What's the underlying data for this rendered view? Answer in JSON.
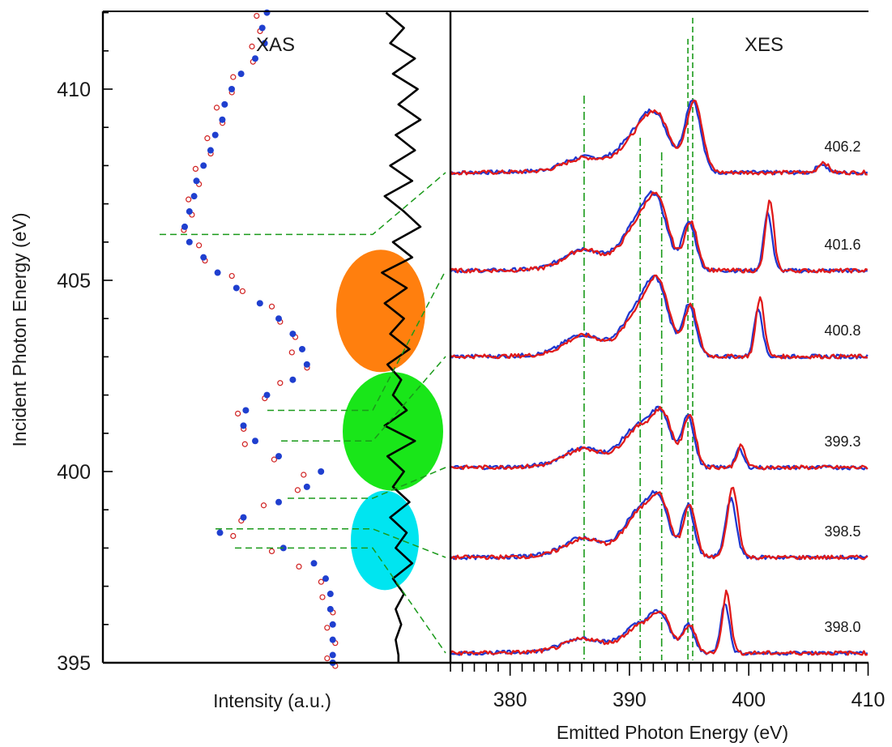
{
  "chart_data": [
    {
      "panel": "left",
      "type": "scatter",
      "label": "XAS",
      "xlabel": "Intensity (a.u.)",
      "ylabel": "Incident Photon Energy (eV)",
      "ylim": [
        395,
        412
      ],
      "yticks": [
        395,
        400,
        405,
        410
      ],
      "series": [
        {
          "name": "",
          "marker": "filled-circle",
          "color": "#1f3fcf",
          "y": [
            412.0,
            411.6,
            411.2,
            410.8,
            410.4,
            410.0,
            409.6,
            409.2,
            408.8,
            408.4,
            408.0,
            407.6,
            407.2,
            406.8,
            406.4,
            406.0,
            405.6,
            405.2,
            404.8,
            404.4,
            404.0,
            403.6,
            403.2,
            402.8,
            402.4,
            402.0,
            401.6,
            401.2,
            400.8,
            400.4,
            400.0,
            399.6,
            399.2,
            398.8,
            398.4,
            398.0,
            397.6,
            397.2,
            396.8,
            396.4,
            396.0,
            395.6,
            395.2,
            395.0
          ],
          "x": [
            0.55,
            0.53,
            0.54,
            0.5,
            0.44,
            0.4,
            0.37,
            0.36,
            0.33,
            0.31,
            0.28,
            0.25,
            0.24,
            0.22,
            0.2,
            0.22,
            0.28,
            0.34,
            0.42,
            0.52,
            0.6,
            0.66,
            0.7,
            0.72,
            0.66,
            0.55,
            0.46,
            0.45,
            0.5,
            0.6,
            0.78,
            0.72,
            0.6,
            0.45,
            0.35,
            0.62,
            0.75,
            0.8,
            0.82,
            0.82,
            0.83,
            0.83,
            0.83,
            0.83
          ]
        },
        {
          "name": "",
          "marker": "open-circle",
          "color": "#d02020",
          "y": [
            412.0,
            411.6,
            411.2,
            410.8,
            410.4,
            410.0,
            409.6,
            409.2,
            408.8,
            408.4,
            408.0,
            407.6,
            407.2,
            406.8,
            406.4,
            406.0,
            405.6,
            405.2,
            404.8,
            404.4,
            404.0,
            403.6,
            403.2,
            402.8,
            402.4,
            402.0,
            401.6,
            401.2,
            400.8,
            400.4,
            400.0,
            399.6,
            399.2,
            398.8,
            398.4,
            398.0,
            397.6,
            397.2,
            396.8,
            396.4,
            396.0,
            395.6,
            395.2,
            395.0
          ],
          "x": [
            0.52,
            0.5,
            0.5,
            0.47,
            0.42,
            0.38,
            0.35,
            0.34,
            0.31,
            0.29,
            0.26,
            0.24,
            0.23,
            0.21,
            0.21,
            0.24,
            0.3,
            0.38,
            0.46,
            0.55,
            0.62,
            0.65,
            0.67,
            0.7,
            0.62,
            0.52,
            0.44,
            0.43,
            0.47,
            0.56,
            0.72,
            0.66,
            0.55,
            0.42,
            0.42,
            0.55,
            0.7,
            0.76,
            0.8,
            0.81,
            0.82,
            0.82,
            0.82,
            0.82
          ]
        },
        {
          "name": "",
          "marker": "line",
          "color": "#000000",
          "y": [
            412.0,
            411.6,
            411.2,
            410.8,
            410.4,
            410.0,
            409.6,
            409.2,
            408.8,
            408.4,
            408.0,
            407.6,
            407.2,
            406.8,
            406.4,
            406.0,
            405.6,
            405.2,
            404.8,
            404.4,
            404.0,
            403.6,
            403.2,
            402.8,
            402.4,
            402.0,
            401.6,
            401.2,
            400.8,
            400.4,
            400.0,
            399.6,
            399.2,
            398.8,
            398.4,
            398.0,
            397.6,
            397.2,
            396.8,
            396.4,
            396.0,
            395.6,
            395.2,
            395.0
          ],
          "x": [
            0.45,
            0.58,
            0.48,
            0.66,
            0.5,
            0.68,
            0.54,
            0.7,
            0.52,
            0.66,
            0.48,
            0.64,
            0.44,
            0.58,
            0.7,
            0.5,
            0.64,
            0.42,
            0.6,
            0.44,
            0.58,
            0.48,
            0.62,
            0.46,
            0.56,
            0.5,
            0.6,
            0.44,
            0.66,
            0.46,
            0.58,
            0.5,
            0.62,
            0.48,
            0.6,
            0.52,
            0.64,
            0.5,
            0.58,
            0.52,
            0.56,
            0.52,
            0.54,
            0.54
          ]
        }
      ],
      "marked_energies": [
        406.2,
        401.6,
        400.8,
        399.3,
        398.5,
        398.0
      ],
      "regions": [
        {
          "color": "#ff7f0e",
          "ymin": 402.6,
          "ymax": 405.8
        },
        {
          "color": "#19e619",
          "ymin": 399.5,
          "ymax": 402.6
        },
        {
          "color": "#00e5f0",
          "ymin": 396.9,
          "ymax": 399.5
        }
      ]
    },
    {
      "panel": "right",
      "type": "line",
      "label": "XES",
      "xlabel": "Emitted Photon Energy (eV)",
      "xlim": [
        375,
        410
      ],
      "xticks": [
        380,
        390,
        400,
        410
      ],
      "reference_lines": {
        "dash_dot": [
          386.2,
          390.9,
          392.7
        ],
        "dashed": [
          394.9,
          395.3
        ]
      },
      "spectra": [
        {
          "label": "406.2",
          "peaks": [
            [
              386.0,
              0.25,
              1.5
            ],
            [
              390.8,
              0.75,
              1.6
            ],
            [
              392.3,
              0.8,
              1.1
            ],
            [
              395.3,
              1.6,
              0.65
            ],
            [
              406.1,
              0.2,
              0.4
            ]
          ],
          "elastic": 406.2
        },
        {
          "label": "401.6",
          "peaks": [
            [
              386.0,
              0.4,
              1.5
            ],
            [
              390.8,
              1.0,
              1.4
            ],
            [
              392.3,
              1.05,
              0.9
            ],
            [
              395.0,
              1.05,
              0.55
            ],
            [
              401.6,
              1.3,
              0.35
            ]
          ],
          "elastic": 401.6
        },
        {
          "label": "400.8",
          "peaks": [
            [
              386.0,
              0.4,
              1.5
            ],
            [
              390.9,
              1.0,
              1.4
            ],
            [
              392.4,
              1.1,
              0.9
            ],
            [
              395.0,
              1.1,
              0.55
            ],
            [
              400.8,
              1.1,
              0.35
            ]
          ],
          "elastic": 400.8
        },
        {
          "label": "399.3",
          "peaks": [
            [
              386.0,
              0.35,
              1.5
            ],
            [
              390.8,
              0.85,
              1.4
            ],
            [
              392.7,
              0.9,
              0.8
            ],
            [
              394.9,
              1.15,
              0.5
            ],
            [
              399.2,
              0.4,
              0.35
            ]
          ],
          "elastic": 399.3
        },
        {
          "label": "398.5",
          "peaks": [
            [
              386.0,
              0.35,
              1.5
            ],
            [
              390.8,
              0.95,
              1.3
            ],
            [
              392.5,
              0.95,
              0.8
            ],
            [
              394.9,
              1.15,
              0.5
            ],
            [
              398.5,
              1.3,
              0.45
            ]
          ],
          "elastic": 398.5
        },
        {
          "label": "398.0",
          "peaks": [
            [
              386.0,
              0.25,
              1.5
            ],
            [
              390.8,
              0.55,
              1.3
            ],
            [
              392.6,
              0.65,
              0.8
            ],
            [
              394.9,
              0.6,
              0.5
            ],
            [
              398.0,
              1.15,
              0.35
            ]
          ],
          "elastic": 398.0
        }
      ],
      "series_colors": [
        "#2038d0",
        "#e01a1a"
      ]
    }
  ]
}
